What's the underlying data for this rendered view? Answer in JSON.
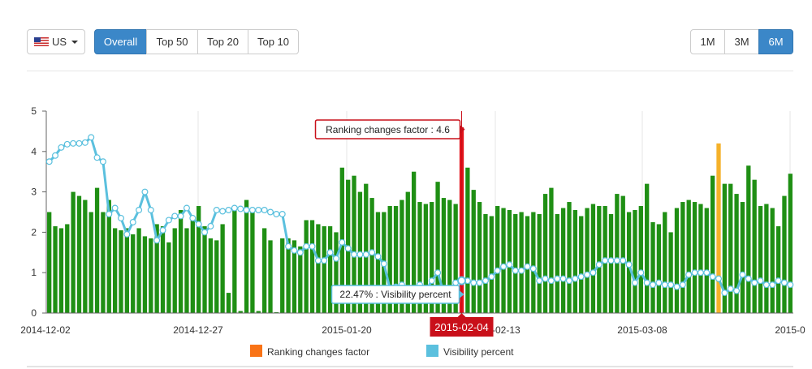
{
  "toolbar": {
    "country_label": "US",
    "tabs": [
      {
        "label": "Overall",
        "active": true
      },
      {
        "label": "Top 50",
        "active": false
      },
      {
        "label": "Top 20",
        "active": false
      },
      {
        "label": "Top 10",
        "active": false
      }
    ],
    "ranges": [
      {
        "label": "1M",
        "active": false
      },
      {
        "label": "3M",
        "active": false
      },
      {
        "label": "6M",
        "active": true
      }
    ]
  },
  "colors": {
    "bar": "#1f8f14",
    "bar_highlight": "#f5b129",
    "bar_selected": "#e3121b",
    "line": "#5bc0de",
    "ranking_legend": "#f97316",
    "tooltip_red": "#c9101a"
  },
  "chart_data": {
    "type": "bar",
    "yticks": [
      "0",
      "1",
      "2",
      "3",
      "4",
      "5"
    ],
    "ylim": [
      0,
      5
    ],
    "xticks": [
      "2014-12-02",
      "2014-12-27",
      "2015-01-20",
      "2015-02-13",
      "2015-03-08",
      "2015-0"
    ],
    "series": [
      {
        "name": "Ranking changes factor",
        "values": [
          2.5,
          2.15,
          2.1,
          2.2,
          3.0,
          2.9,
          2.8,
          2.5,
          3.1,
          2.5,
          2.8,
          2.1,
          2.05,
          2.1,
          1.95,
          2.1,
          1.9,
          1.85,
          2.2,
          2.15,
          1.75,
          2.1,
          2.55,
          2.1,
          2.35,
          2.65,
          2.15,
          1.85,
          1.8,
          2.2,
          0.5,
          2.55,
          0.05,
          2.8,
          2.6,
          0.05,
          2.1,
          1.8,
          0.02,
          1.85,
          1.85,
          1.8,
          1.65,
          2.3,
          2.3,
          2.2,
          2.15,
          2.15,
          2.0,
          3.6,
          3.3,
          3.4,
          3.0,
          3.2,
          2.85,
          2.5,
          2.5,
          2.65,
          2.65,
          2.8,
          3.0,
          3.5,
          2.75,
          2.7,
          2.75,
          3.25,
          2.85,
          2.8,
          2.7,
          4.6,
          3.6,
          3.05,
          2.75,
          2.45,
          2.4,
          2.65,
          2.6,
          2.55,
          2.45,
          2.5,
          2.4,
          2.5,
          2.45,
          2.95,
          3.1,
          2.45,
          2.6,
          2.75,
          2.55,
          2.4,
          2.6,
          2.7,
          2.65,
          2.65,
          2.45,
          2.95,
          2.9,
          2.5,
          2.55,
          2.65,
          3.2,
          2.25,
          2.2,
          2.5,
          2.0,
          2.6,
          2.75,
          2.8,
          2.75,
          2.7,
          2.6,
          3.4,
          4.2,
          3.2,
          3.2,
          2.95,
          2.75,
          3.65,
          3.3,
          2.65,
          2.7,
          2.6,
          2.15,
          2.9,
          3.45
        ]
      },
      {
        "name": "Visibility percent",
        "values": [
          3.75,
          3.9,
          4.1,
          4.18,
          4.2,
          4.2,
          4.22,
          4.35,
          3.85,
          3.75,
          2.45,
          2.6,
          2.35,
          1.95,
          2.25,
          2.55,
          3.0,
          2.55,
          1.8,
          2.05,
          2.3,
          2.4,
          2.4,
          2.6,
          2.35,
          2.2,
          2.0,
          2.15,
          2.55,
          2.52,
          2.55,
          2.6,
          2.58,
          2.55,
          2.55,
          2.55,
          2.55,
          2.5,
          2.45,
          2.45,
          1.65,
          1.55,
          1.5,
          1.65,
          1.65,
          1.3,
          1.3,
          1.5,
          1.35,
          1.75,
          1.6,
          1.45,
          1.45,
          1.45,
          1.5,
          1.4,
          1.22,
          0.6,
          0.65,
          0.7,
          0.45,
          0.5,
          0.7,
          0.55,
          0.8,
          1.0,
          0.5,
          0.55,
          0.75,
          0.8,
          0.8,
          0.75,
          0.75,
          0.8,
          0.9,
          1.05,
          1.15,
          1.2,
          1.05,
          1.05,
          1.15,
          1.1,
          0.8,
          0.85,
          0.8,
          0.85,
          0.85,
          0.8,
          0.85,
          0.9,
          0.95,
          1.0,
          1.2,
          1.3,
          1.3,
          1.3,
          1.3,
          1.2,
          0.75,
          1.0,
          0.75,
          0.7,
          0.75,
          0.7,
          0.7,
          0.65,
          0.7,
          0.95,
          1.0,
          1.0,
          1.0,
          0.9,
          0.85,
          0.5,
          0.6,
          0.55,
          0.95,
          0.85,
          0.75,
          0.8,
          0.7,
          0.7,
          0.8,
          0.75,
          0.7
        ]
      }
    ],
    "highlight_index": 112,
    "selected_index": 69,
    "selected_date": "2015-02-04",
    "tooltip_top": "Ranking changes factor : 4.6",
    "tooltip_bottom": "22.47% : Visibility percent",
    "legend": [
      {
        "label": "Ranking changes factor",
        "color": "#f97316"
      },
      {
        "label": "Visibility percent",
        "color": "#5bc0de"
      }
    ]
  }
}
